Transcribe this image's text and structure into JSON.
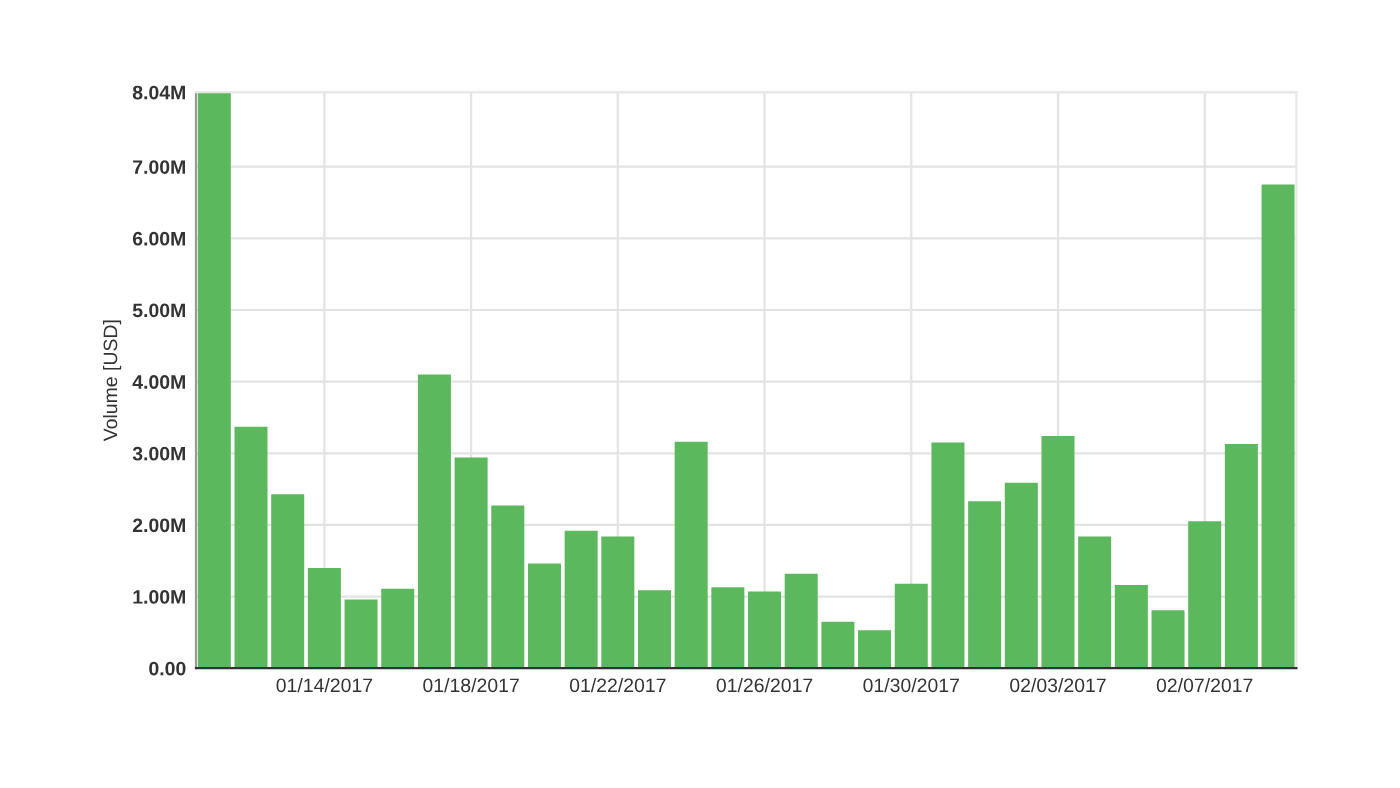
{
  "chart_data": {
    "type": "bar",
    "ylabel": "Volume [USD]",
    "categories": [
      null,
      null,
      null,
      "01/14/2017",
      null,
      null,
      null,
      "01/18/2017",
      null,
      null,
      null,
      "01/22/2017",
      null,
      null,
      null,
      "01/26/2017",
      null,
      null,
      null,
      "01/30/2017",
      null,
      null,
      null,
      "02/03/2017",
      null,
      null,
      null,
      "02/07/2017",
      null,
      null
    ],
    "values": [
      8.04,
      3.37,
      2.43,
      1.4,
      0.96,
      1.11,
      4.1,
      2.94,
      2.27,
      1.46,
      1.92,
      1.84,
      1.09,
      3.16,
      1.13,
      1.07,
      1.32,
      0.65,
      0.53,
      1.18,
      3.15,
      2.33,
      2.59,
      3.24,
      1.84,
      1.16,
      0.81,
      2.05,
      3.13,
      6.75
    ],
    "color": "#5cb85c",
    "ylim": [
      0,
      8.04
    ],
    "yticks": [
      {
        "value": 0,
        "label": "0.00"
      },
      {
        "value": 1,
        "label": "1.00M"
      },
      {
        "value": 2,
        "label": "2.00M"
      },
      {
        "value": 3,
        "label": "3.00M"
      },
      {
        "value": 4,
        "label": "4.00M"
      },
      {
        "value": 5,
        "label": "5.00M"
      },
      {
        "value": 6,
        "label": "6.00M"
      },
      {
        "value": 7,
        "label": "7.00M"
      },
      {
        "value": 8.04,
        "label": "8.04M"
      }
    ],
    "grid": true,
    "legend": false
  }
}
